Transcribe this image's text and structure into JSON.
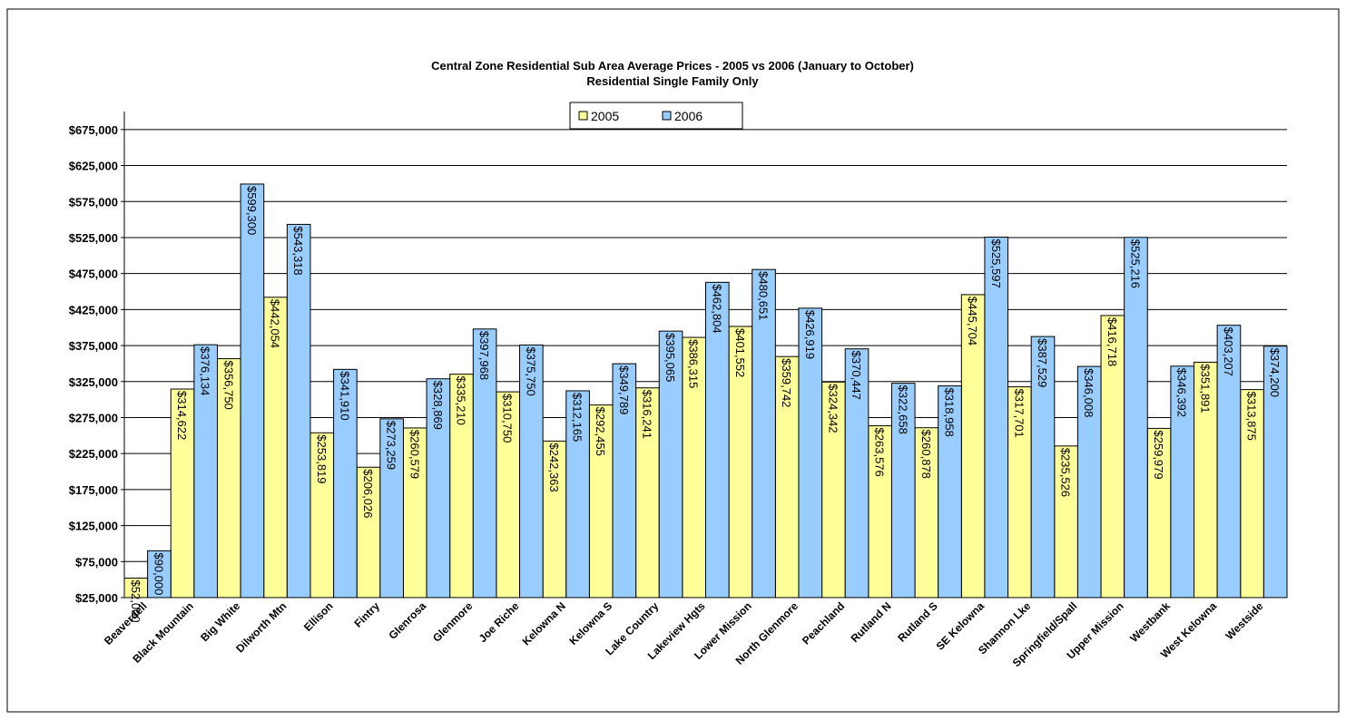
{
  "chart_data": {
    "type": "bar",
    "title": "Central Zone Residential Sub Area Average Prices - 2005 vs 2006 (January to October)",
    "subtitle": "Residential Single Family Only",
    "categories": [
      "Beaverdell",
      "Black Mountain",
      "Big White",
      "Dilworth Mtn",
      "Ellison",
      "Fintry",
      "Glenrosa",
      "Glenmore",
      "Joe Riche",
      "Kelowna N",
      "Kelowna S",
      "Lake Country",
      "Lakeview Hgts",
      "Lower Mission",
      "North Glenmore",
      "Peachland",
      "Rutland N",
      "Rutland S",
      "SE Kelowna",
      "Shannon Lke",
      "Springfield/Spall",
      "Upper Mission",
      "Westbank",
      "West Kelowna",
      "Westside"
    ],
    "series": [
      {
        "name": "2005",
        "color": "#ffff99",
        "values": [
          52000,
          314622,
          356750,
          442054,
          253819,
          206026,
          260579,
          335210,
          310750,
          242363,
          292455,
          316241,
          386315,
          401552,
          359742,
          324342,
          263576,
          260878,
          445704,
          317701,
          235526,
          416718,
          259979,
          351891,
          313875
        ],
        "value_labels": [
          "$52,000",
          "$314,622",
          "$356,750",
          "$442,054",
          "$253,819",
          "$206,026",
          "$260,579",
          "$335,210",
          "$310,750",
          "$242,363",
          "$292,455",
          "$316,241",
          "$386,315",
          "$401,552",
          "$359,742",
          "$324,342",
          "$263,576",
          "$260,878",
          "$445,704",
          "$317,701",
          "$235,526",
          "$416,718",
          "$259,979",
          "$351,891",
          "$313,875"
        ]
      },
      {
        "name": "2006",
        "color": "#99ccff",
        "values": [
          90000,
          376134,
          599300,
          543318,
          341910,
          273259,
          328869,
          397968,
          375750,
          312165,
          349789,
          395065,
          462804,
          480651,
          426919,
          370447,
          322658,
          318958,
          525597,
          387529,
          346008,
          525216,
          346392,
          403207,
          374200
        ],
        "value_labels": [
          "$90,000",
          "$376,134",
          "$599,300",
          "$543,318",
          "$341,910",
          "$273,259",
          "$328,869",
          "$397,968",
          "$375,750",
          "$312,165",
          "$349,789",
          "$395,065",
          "$462,804",
          "$480,651",
          "$426,919",
          "$370,447",
          "$322,658",
          "$318,958",
          "$525,597",
          "$387,529",
          "$346,008",
          "$525,216",
          "$346,392",
          "$403,207",
          "$374,200"
        ]
      }
    ],
    "ylim": [
      25000,
      700000
    ],
    "yticks": [
      {
        "value": 25000,
        "label": "$25,000"
      },
      {
        "value": 75000,
        "label": "$75,000"
      },
      {
        "value": 125000,
        "label": "$125,000"
      },
      {
        "value": 175000,
        "label": "$175,000"
      },
      {
        "value": 225000,
        "label": "$225,000"
      },
      {
        "value": 275000,
        "label": "$275,000"
      },
      {
        "value": 325000,
        "label": "$325,000"
      },
      {
        "value": 375000,
        "label": "$375,000"
      },
      {
        "value": 425000,
        "label": "$425,000"
      },
      {
        "value": 475000,
        "label": "$475,000"
      },
      {
        "value": 525000,
        "label": "$525,000"
      },
      {
        "value": 575000,
        "label": "$575,000"
      },
      {
        "value": 625000,
        "label": "$625,000"
      },
      {
        "value": 675000,
        "label": "$675,000"
      }
    ],
    "grid": true,
    "legend": "top"
  }
}
